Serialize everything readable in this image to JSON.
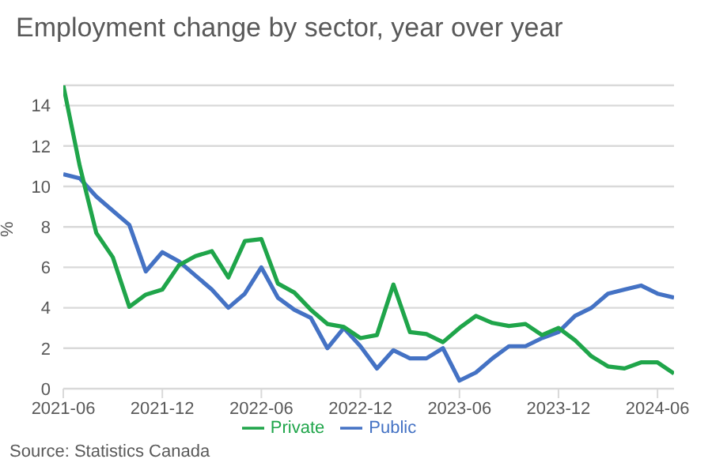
{
  "chart_data": {
    "type": "line",
    "title": "Employment change by sector, year over year",
    "ylabel": "%",
    "categories": [
      "2021-06",
      null,
      null,
      null,
      null,
      null,
      "2021-12",
      null,
      null,
      null,
      null,
      null,
      "2022-06",
      null,
      null,
      null,
      null,
      null,
      "2022-12",
      null,
      null,
      null,
      null,
      null,
      "2023-06",
      null,
      null,
      null,
      null,
      null,
      "2023-12",
      null,
      null,
      null,
      null,
      null,
      "2024-06",
      null
    ],
    "series": [
      {
        "name": "Public",
        "color": "#4472c4",
        "values": [
          10.6,
          10.4,
          9.5,
          8.8,
          8.1,
          5.8,
          6.75,
          6.3,
          5.6,
          4.9,
          4.0,
          4.7,
          6.0,
          4.5,
          3.9,
          3.5,
          2.0,
          3.0,
          2.1,
          1.0,
          1.9,
          1.5,
          1.5,
          2.0,
          0.4,
          0.8,
          1.5,
          2.1,
          2.1,
          2.5,
          2.8,
          3.6,
          4.0,
          4.7,
          4.9,
          5.1,
          4.7,
          4.5
        ]
      },
      {
        "name": "Private",
        "color": "#1fa54a",
        "values": [
          15.0,
          11.0,
          7.7,
          6.5,
          4.05,
          4.65,
          4.9,
          6.1,
          6.55,
          6.8,
          5.5,
          7.3,
          7.4,
          5.2,
          4.75,
          3.9,
          3.2,
          3.05,
          2.5,
          2.65,
          5.15,
          2.8,
          2.7,
          2.3,
          3.0,
          3.6,
          3.25,
          3.1,
          3.2,
          2.65,
          3.0,
          2.4,
          1.6,
          1.1,
          1.0,
          1.3,
          1.3,
          0.75
        ]
      }
    ],
    "ylim": [
      0,
      15
    ],
    "yticks": [
      0,
      2,
      4,
      6,
      8,
      10,
      12,
      14
    ],
    "grid": "y",
    "legend": "bottom",
    "marker": "none",
    "line_style": "solid",
    "annotations": [
      "Source: Statistics Canada"
    ]
  }
}
